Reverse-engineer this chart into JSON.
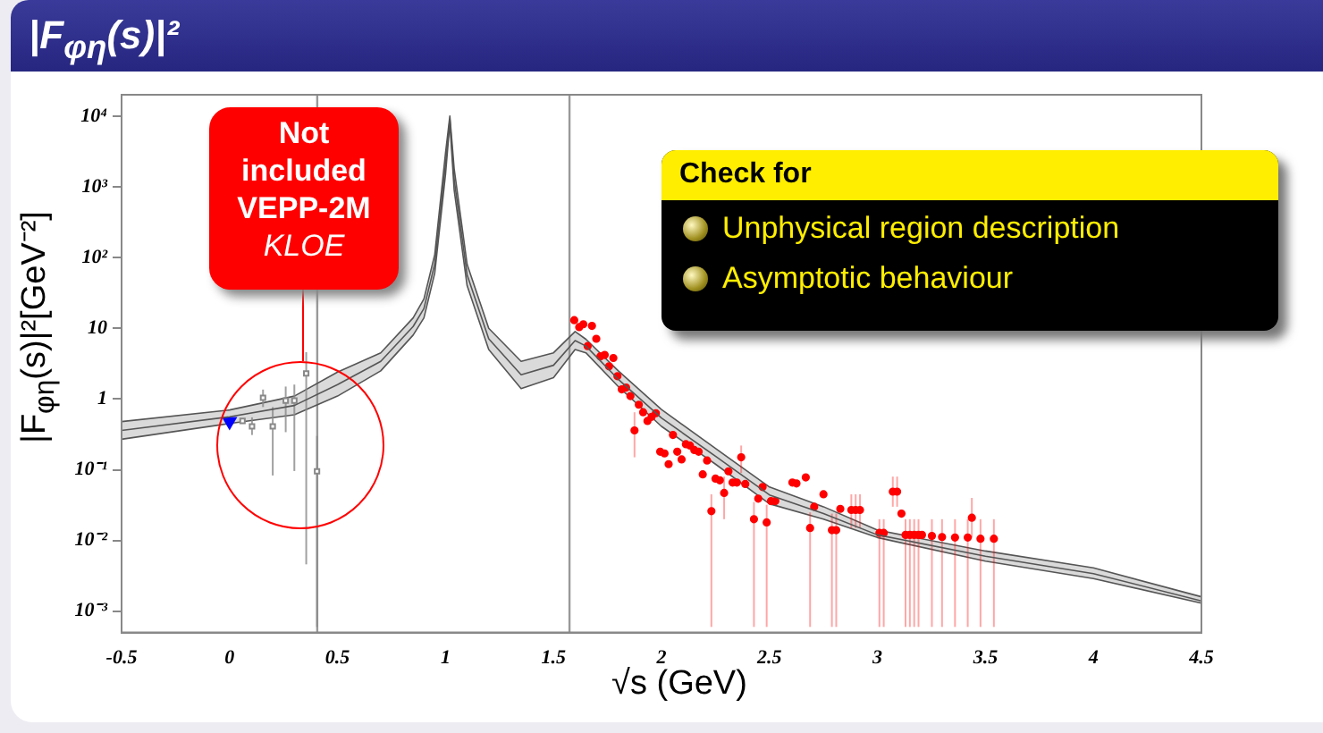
{
  "chart_data": {
    "type": "scatter",
    "title": "|F$_{φη}$(s)|²",
    "xlabel": "√s (GeV)",
    "ylabel": "|F$_{φη}$(s)|²[GeV⁻²]",
    "log": "y",
    "grid": false,
    "legend": false,
    "xlim": [
      -0.5,
      4.5
    ],
    "xticks": [
      -0.5,
      0,
      0.5,
      1,
      1.5,
      2,
      2.5,
      3,
      3.5,
      4,
      4.5
    ],
    "ylim": [
      0.0005,
      20000
    ],
    "yticks": [
      {
        "value": 0.001,
        "label": "10⁻³"
      },
      {
        "value": 0.01,
        "label": "10⁻²"
      },
      {
        "value": 0.1,
        "label": "10⁻¹"
      },
      {
        "value": 1,
        "label": "1"
      },
      {
        "value": 10,
        "label": "10"
      },
      {
        "value": 100,
        "label": "10²"
      },
      {
        "value": 1000,
        "label": "10³"
      },
      {
        "value": 10000,
        "label": "10⁴"
      }
    ],
    "ref_lines": [
      {
        "axis": "x",
        "value": 0.406,
        "color": "#999999"
      },
      {
        "axis": "x",
        "value": 1.574,
        "color": "#999999"
      }
    ],
    "annotations": [
      "Not\nincluded\nVEPP-2M\nKLOE",
      "Check for",
      "Unphysical region description",
      "Asymptotic behaviour"
    ],
    "series": [
      {
        "type": "line",
        "color": "#555555",
        "marker": "none",
        "x": [
          -0.5,
          0,
          0.3,
          0.5,
          0.7,
          0.85,
          0.9,
          0.95,
          1.0,
          1.02,
          1.04,
          1.1,
          1.2,
          1.35,
          1.5,
          1.6,
          1.65,
          1.8,
          2.0,
          2.25,
          2.5,
          2.75,
          3.0,
          3.5,
          4.0,
          4.5
        ],
        "values": [
          0.36,
          0.56,
          0.81,
          1.6,
          3.4,
          10.6,
          19,
          81,
          2100,
          9000,
          1270,
          57,
          7.1,
          2.2,
          3,
          6.7,
          5.6,
          1.9,
          0.54,
          0.155,
          0.044,
          0.024,
          0.012,
          0.006,
          0.0034,
          0.0014
        ],
        "lower": [
          0.27,
          0.45,
          0.6,
          1.1,
          2.5,
          8,
          14,
          60,
          1500,
          8000,
          900,
          40,
          5,
          1.4,
          2,
          5,
          4.5,
          1.5,
          0.41,
          0.12,
          0.033,
          0.02,
          0.011,
          0.0051,
          0.0029,
          0.0013
        ],
        "upper": [
          0.48,
          0.7,
          1.1,
          2.4,
          4.5,
          14,
          26,
          110,
          3000,
          10000,
          1800,
          80,
          10,
          3.4,
          4.5,
          9,
          7,
          2.5,
          0.71,
          0.2,
          0.057,
          0.03,
          0.014,
          0.0071,
          0.0041,
          0.0016
        ]
      },
      {
        "color": "#888888",
        "marker": "square",
        "x": [
          0.06,
          0.104,
          0.155,
          0.2,
          0.26,
          0.3,
          0.355,
          0.405
        ],
        "values": [
          0.49,
          0.41,
          1.04,
          0.41,
          0.95,
          0.95,
          2.3,
          0.095
        ],
        "errors": [
          null,
          [
            0.31,
            0.55
          ],
          [
            0.77,
            1.36
          ],
          [
            0.083,
            0.77
          ],
          [
            0.34,
            1.5
          ],
          [
            0.096,
            1.6
          ],
          [
            0.0046,
            4.6
          ],
          [
            0.0006,
            0.3
          ]
        ]
      },
      {
        "color": "#0000ff",
        "marker": "triangle",
        "x": [
          0
        ],
        "values": [
          0.48
        ]
      },
      {
        "color": "#ff0000",
        "marker": "circle",
        "x": [
          1.596,
          1.619,
          1.638,
          1.658,
          1.678,
          1.698,
          1.717,
          1.737,
          1.757,
          1.777,
          1.796,
          1.816,
          1.836,
          1.856,
          1.875,
          1.895,
          1.915,
          1.935,
          1.954,
          1.974,
          1.994,
          2.014,
          2.033,
          2.053,
          2.073,
          2.093,
          2.113,
          2.132,
          2.152,
          2.172,
          2.191,
          2.211,
          2.231,
          2.25,
          2.27,
          2.29,
          2.31,
          2.329,
          2.349,
          2.369,
          2.388,
          2.428,
          2.448,
          2.468,
          2.487,
          2.507,
          2.527,
          2.606,
          2.625,
          2.668,
          2.688,
          2.707,
          2.75,
          2.789,
          2.809,
          2.828,
          2.879,
          2.899,
          2.919,
          3.009,
          3.029,
          3.071,
          3.091,
          3.111,
          3.13,
          3.15,
          3.17,
          3.19,
          3.206,
          3.252,
          3.299,
          3.359,
          3.418,
          3.437,
          3.477,
          3.539
        ],
        "values": [
          13,
          10.4,
          11.4,
          5.6,
          10.8,
          7.1,
          4.0,
          4.2,
          2.9,
          3.8,
          2.1,
          1.37,
          1.45,
          1.1,
          0.36,
          0.83,
          0.65,
          0.49,
          0.56,
          0.63,
          0.18,
          0.17,
          0.12,
          0.31,
          0.18,
          0.14,
          0.23,
          0.22,
          0.19,
          0.18,
          0.086,
          0.135,
          0.026,
          0.075,
          0.071,
          0.047,
          0.095,
          0.066,
          0.066,
          0.15,
          0.063,
          0.02,
          0.039,
          0.057,
          0.018,
          0.036,
          0.036,
          0.066,
          0.064,
          0.078,
          0.015,
          0.03,
          0.045,
          0.014,
          0.014,
          0.028,
          0.027,
          0.027,
          0.027,
          0.0128,
          0.0128,
          0.049,
          0.049,
          0.024,
          0.012,
          0.012,
          0.012,
          0.012,
          0.012,
          0.0116,
          0.0112,
          0.011,
          0.011,
          0.021,
          0.0106,
          0.0106
        ],
        "errors": [
          null,
          null,
          null,
          null,
          null,
          null,
          null,
          null,
          null,
          null,
          null,
          null,
          null,
          null,
          [
            0.15,
            0.65
          ],
          null,
          null,
          null,
          null,
          null,
          null,
          null,
          null,
          null,
          null,
          null,
          null,
          null,
          null,
          null,
          null,
          null,
          [
            0.0006,
            0.045
          ],
          null,
          null,
          [
            0.02,
            0.08
          ],
          null,
          null,
          null,
          [
            0.09,
            0.22
          ],
          null,
          [
            0.0006,
            0.035
          ],
          null,
          null,
          [
            0.0006,
            0.032
          ],
          null,
          null,
          null,
          null,
          null,
          [
            0.0006,
            0.025
          ],
          null,
          null,
          [
            0.0006,
            0.024
          ],
          [
            0.0006,
            0.024
          ],
          null,
          [
            0.015,
            0.045
          ],
          [
            0.015,
            0.045
          ],
          [
            0.015,
            0.045
          ],
          [
            0.0006,
            0.02
          ],
          [
            0.0006,
            0.02
          ],
          [
            0.03,
            0.08
          ],
          [
            0.03,
            0.08
          ],
          null,
          [
            0.0006,
            0.02
          ],
          [
            0.0006,
            0.02
          ],
          [
            0.0006,
            0.02
          ],
          [
            0.0006,
            0.02
          ],
          null,
          [
            0.0006,
            0.02
          ],
          [
            0.0006,
            0.02
          ],
          [
            0.0006,
            0.02
          ],
          [
            0.0006,
            0.02
          ],
          [
            0.011,
            0.04
          ],
          [
            0.0006,
            0.02
          ],
          [
            0.0006,
            0.02
          ]
        ]
      }
    ]
  }
}
